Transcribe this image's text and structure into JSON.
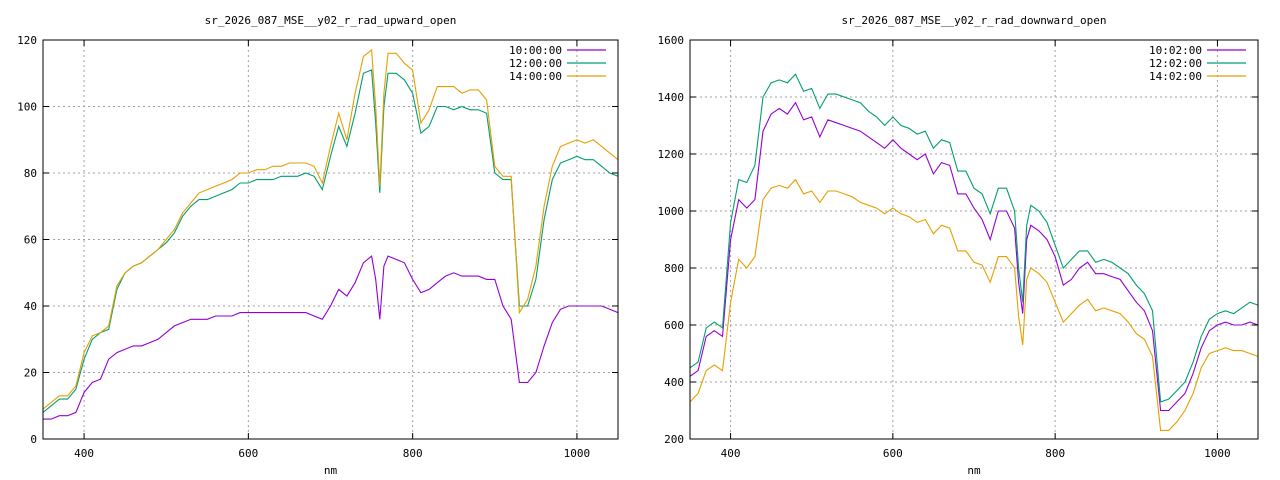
{
  "chart_data": [
    {
      "type": "line",
      "title": "sr_2026_087_MSE__y02_r_rad_upward_open",
      "xlabel": "nm",
      "ylabel": "",
      "xlim": [
        350,
        1050
      ],
      "ylim": [
        0,
        120
      ],
      "xticks": [
        400,
        600,
        800,
        1000
      ],
      "yticks": [
        0,
        20,
        40,
        60,
        80,
        100,
        120
      ],
      "grid": true,
      "legend": "top-right",
      "x": [
        350,
        360,
        370,
        380,
        390,
        400,
        410,
        420,
        430,
        440,
        450,
        460,
        470,
        480,
        490,
        500,
        510,
        520,
        530,
        540,
        550,
        560,
        570,
        580,
        590,
        600,
        610,
        620,
        630,
        640,
        650,
        660,
        670,
        680,
        690,
        700,
        710,
        720,
        730,
        740,
        750,
        755,
        760,
        765,
        770,
        780,
        790,
        800,
        810,
        820,
        830,
        840,
        850,
        860,
        870,
        880,
        890,
        900,
        910,
        920,
        930,
        940,
        950,
        960,
        970,
        980,
        990,
        1000,
        1010,
        1020,
        1030,
        1040,
        1050
      ],
      "series": [
        {
          "name": "10:00:00",
          "color": "#9400d3",
          "values": [
            6,
            6,
            7,
            7,
            8,
            14,
            17,
            18,
            24,
            26,
            27,
            28,
            28,
            29,
            30,
            32,
            34,
            35,
            36,
            36,
            36,
            37,
            37,
            37,
            38,
            38,
            38,
            38,
            38,
            38,
            38,
            38,
            38,
            37,
            36,
            40,
            45,
            43,
            47,
            53,
            55,
            48,
            36,
            52,
            55,
            54,
            53,
            48,
            44,
            45,
            47,
            49,
            50,
            49,
            49,
            49,
            48,
            48,
            40,
            36,
            17,
            17,
            20,
            28,
            35,
            39,
            40,
            40,
            40,
            40,
            40,
            39,
            38
          ]
        },
        {
          "name": "12:00:00",
          "color": "#009e73",
          "values": [
            8,
            10,
            12,
            12,
            15,
            24,
            30,
            32,
            33,
            45,
            50,
            52,
            53,
            55,
            57,
            59,
            62,
            67,
            70,
            72,
            72,
            73,
            74,
            75,
            77,
            77,
            78,
            78,
            78,
            79,
            79,
            79,
            80,
            79,
            75,
            85,
            94,
            88,
            98,
            110,
            111,
            95,
            74,
            100,
            110,
            110,
            108,
            104,
            92,
            94,
            100,
            100,
            99,
            100,
            99,
            99,
            98,
            80,
            78,
            78,
            40,
            40,
            48,
            66,
            78,
            83,
            84,
            85,
            84,
            84,
            82,
            80,
            79
          ]
        },
        {
          "name": "14:00:00",
          "color": "#e69f00",
          "values": [
            9,
            11,
            13,
            13,
            16,
            26,
            31,
            32,
            34,
            46,
            50,
            52,
            53,
            55,
            57,
            60,
            63,
            68,
            71,
            74,
            75,
            76,
            77,
            78,
            80,
            80,
            81,
            81,
            82,
            82,
            83,
            83,
            83,
            82,
            77,
            88,
            98,
            90,
            104,
            115,
            117,
            100,
            76,
            104,
            116,
            116,
            113,
            111,
            95,
            99,
            106,
            106,
            106,
            104,
            105,
            105,
            102,
            82,
            79,
            79,
            38,
            42,
            52,
            70,
            82,
            88,
            89,
            90,
            89,
            90,
            88,
            86,
            84
          ]
        }
      ]
    },
    {
      "type": "line",
      "title": "sr_2026_087_MSE__y02_r_rad_downward_open",
      "xlabel": "nm",
      "ylabel": "",
      "xlim": [
        350,
        1050
      ],
      "ylim": [
        200,
        1600
      ],
      "xticks": [
        400,
        600,
        800,
        1000
      ],
      "yticks": [
        200,
        400,
        600,
        800,
        1000,
        1200,
        1400,
        1600
      ],
      "grid": true,
      "legend": "top-right",
      "x": [
        350,
        360,
        370,
        380,
        390,
        400,
        410,
        420,
        430,
        440,
        450,
        460,
        470,
        480,
        490,
        500,
        510,
        520,
        530,
        540,
        550,
        560,
        570,
        580,
        590,
        600,
        610,
        620,
        630,
        640,
        650,
        660,
        670,
        680,
        690,
        700,
        710,
        720,
        730,
        740,
        750,
        755,
        760,
        765,
        770,
        780,
        790,
        800,
        810,
        820,
        830,
        840,
        850,
        860,
        870,
        880,
        890,
        900,
        910,
        920,
        930,
        940,
        950,
        960,
        970,
        980,
        990,
        1000,
        1010,
        1020,
        1030,
        1040,
        1050
      ],
      "series": [
        {
          "name": "10:02:00",
          "color": "#9400d3",
          "values": [
            420,
            440,
            560,
            580,
            560,
            900,
            1040,
            1010,
            1040,
            1280,
            1340,
            1360,
            1340,
            1380,
            1320,
            1330,
            1260,
            1320,
            1310,
            1300,
            1290,
            1280,
            1260,
            1240,
            1220,
            1250,
            1220,
            1200,
            1180,
            1200,
            1130,
            1170,
            1160,
            1060,
            1060,
            1010,
            970,
            900,
            1000,
            1000,
            940,
            750,
            640,
            900,
            950,
            930,
            900,
            840,
            740,
            760,
            800,
            820,
            780,
            780,
            770,
            760,
            720,
            680,
            650,
            580,
            300,
            300,
            330,
            360,
            430,
            520,
            580,
            600,
            610,
            600,
            600,
            610,
            600
          ]
        },
        {
          "name": "12:02:00",
          "color": "#009e73",
          "values": [
            450,
            470,
            590,
            610,
            590,
            960,
            1110,
            1100,
            1160,
            1400,
            1450,
            1460,
            1450,
            1480,
            1420,
            1430,
            1360,
            1410,
            1410,
            1400,
            1390,
            1380,
            1350,
            1330,
            1300,
            1330,
            1300,
            1290,
            1270,
            1280,
            1220,
            1250,
            1240,
            1140,
            1140,
            1080,
            1060,
            990,
            1080,
            1080,
            1000,
            800,
            680,
            950,
            1020,
            1000,
            960,
            880,
            800,
            830,
            860,
            860,
            820,
            830,
            820,
            800,
            780,
            740,
            710,
            650,
            330,
            340,
            370,
            400,
            470,
            560,
            620,
            640,
            650,
            640,
            660,
            680,
            670
          ]
        },
        {
          "name": "14:02:00",
          "color": "#e69f00",
          "values": [
            330,
            360,
            440,
            460,
            440,
            680,
            830,
            800,
            840,
            1040,
            1080,
            1090,
            1080,
            1110,
            1060,
            1070,
            1030,
            1070,
            1070,
            1060,
            1050,
            1030,
            1020,
            1010,
            990,
            1010,
            990,
            980,
            960,
            970,
            920,
            950,
            940,
            860,
            860,
            820,
            810,
            750,
            840,
            840,
            800,
            630,
            530,
            760,
            800,
            780,
            750,
            680,
            610,
            640,
            670,
            690,
            650,
            660,
            650,
            640,
            610,
            570,
            550,
            490,
            230,
            230,
            260,
            300,
            360,
            450,
            500,
            510,
            520,
            510,
            510,
            500,
            490
          ]
        }
      ]
    }
  ]
}
